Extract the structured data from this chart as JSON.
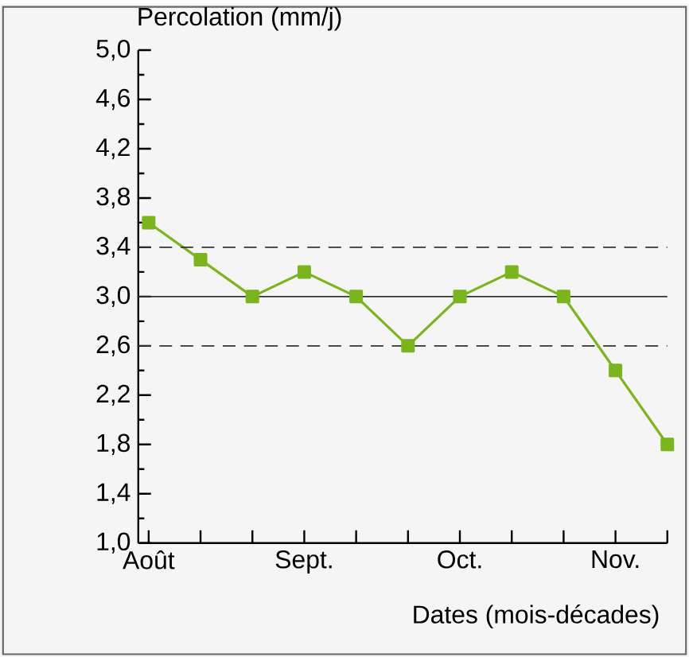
{
  "chart_data": {
    "type": "line",
    "xlabel": "Dates (mois-décades)",
    "ylabel": "Percolation (mm/j)",
    "categories": [
      "Août",
      null,
      null,
      "Sept.",
      null,
      null,
      "Oct.",
      null,
      null,
      "Nov.",
      null
    ],
    "series": [
      {
        "color": "#7ab51d",
        "values": [
          3.6,
          3.3,
          3.0,
          3.2,
          3.0,
          2.6,
          3.0,
          3.2,
          3.0,
          2.4,
          1.8
        ]
      }
    ],
    "ylim": [
      1.0,
      5.0
    ],
    "yticks": [
      {
        "value": 1.0,
        "label": "1,0"
      },
      {
        "value": 1.4,
        "label": "1,4"
      },
      {
        "value": 1.8,
        "label": "1,8"
      },
      {
        "value": 2.2,
        "label": "2,2"
      },
      {
        "value": 2.6,
        "label": "2,6"
      },
      {
        "value": 3.0,
        "label": "3,0"
      },
      {
        "value": 3.4,
        "label": "3,4"
      },
      {
        "value": 3.8,
        "label": "3,8"
      },
      {
        "value": 4.2,
        "label": "4,2"
      },
      {
        "value": 4.6,
        "label": "4,6"
      },
      {
        "value": 5.0,
        "label": "5,0"
      }
    ],
    "ref_lines": [
      {
        "axis": "y",
        "value": 3.4,
        "color": "#333333",
        "line_style": "dashed"
      },
      {
        "axis": "y",
        "value": 3.0,
        "color": "#333333",
        "line_style": "solid"
      },
      {
        "axis": "y",
        "value": 2.6,
        "color": "#333333",
        "line_style": "dashed"
      }
    ],
    "marker": "square",
    "line_style": "solid"
  }
}
